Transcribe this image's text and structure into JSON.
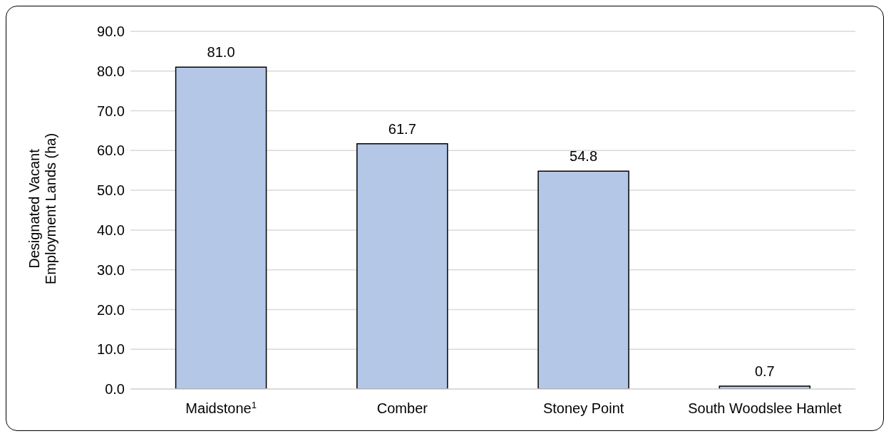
{
  "chart_data": {
    "type": "bar",
    "ylabel": "Designated Vacant Employment Lands (ha)",
    "categories": [
      "Maidstone$^{1}$",
      "Comber",
      "Stoney Point",
      "South Woodslee Hamlet"
    ],
    "values": [
      81.0,
      61.7,
      54.8,
      0.7
    ],
    "value_labels": [
      "81.0",
      "61.7",
      "54.8",
      "0.7"
    ],
    "color": "#b4c7e7",
    "ylim": [
      0,
      90
    ],
    "yticks": [
      {
        "value": 0,
        "label": "0.0"
      },
      {
        "value": 10,
        "label": "10.0"
      },
      {
        "value": 20,
        "label": "20.0"
      },
      {
        "value": 30,
        "label": "30.0"
      },
      {
        "value": 40,
        "label": "40.0"
      },
      {
        "value": 50,
        "label": "50.0"
      },
      {
        "value": 60,
        "label": "60.0"
      },
      {
        "value": 70,
        "label": "70.0"
      },
      {
        "value": 80,
        "label": "80.0"
      },
      {
        "value": 90,
        "label": "90.0"
      }
    ],
    "grid": "y"
  }
}
